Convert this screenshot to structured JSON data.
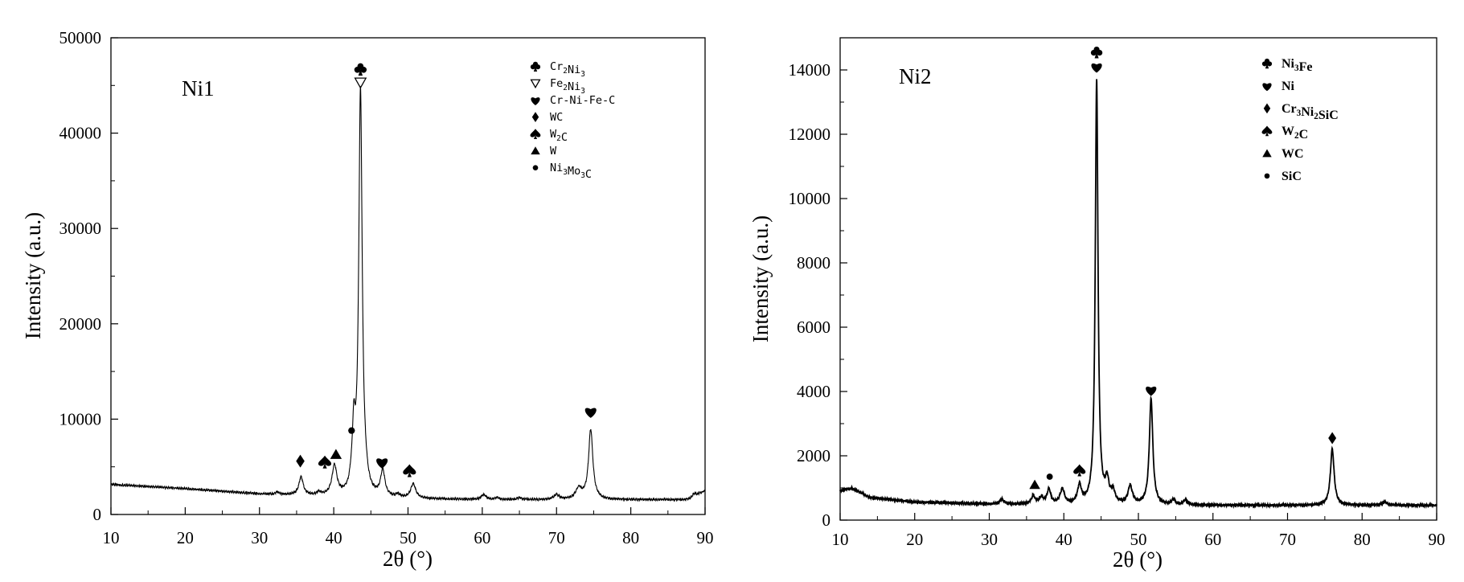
{
  "chart_data": [
    {
      "type": "line",
      "panel_label": "Ni1",
      "xlabel": "2θ (°)",
      "ylabel": "Intensity (a.u.)",
      "xlim": [
        10,
        90
      ],
      "ylim": [
        0,
        50000
      ],
      "x_ticks": [
        10,
        20,
        30,
        40,
        50,
        60,
        70,
        80,
        90
      ],
      "y_ticks": [
        0,
        10000,
        20000,
        30000,
        40000,
        50000
      ],
      "grid": false,
      "legend_position": "top-right",
      "legend": [
        {
          "symbol": "club",
          "label": "Cr2Ni3",
          "base": "Cr",
          "sub1": "2",
          "mid": "Ni",
          "sub2": "3",
          "tail": ""
        },
        {
          "symbol": "triangle-down-open",
          "label": "Fe2Ni3",
          "base": "Fe",
          "sub1": "2",
          "mid": "Ni",
          "sub2": "3",
          "tail": ""
        },
        {
          "symbol": "heart",
          "label": "Cr-Ni-Fe-C",
          "base": "Cr-Ni-Fe-C",
          "sub1": "",
          "mid": "",
          "sub2": "",
          "tail": ""
        },
        {
          "symbol": "diamond",
          "label": "WC",
          "base": "WC",
          "sub1": "",
          "mid": "",
          "sub2": "",
          "tail": ""
        },
        {
          "symbol": "spade",
          "label": "W2C",
          "base": "W",
          "sub1": "2",
          "mid": "C",
          "sub2": "",
          "tail": ""
        },
        {
          "symbol": "triangle-up",
          "label": "W",
          "base": "W",
          "sub1": "",
          "mid": "",
          "sub2": "",
          "tail": ""
        },
        {
          "symbol": "circle",
          "label": "Ni3Mo3C",
          "base": "Ni",
          "sub1": "3",
          "mid": "Mo",
          "sub2": "3",
          "tail": "C"
        }
      ],
      "baseline": [
        [
          10,
          3150
        ],
        [
          20,
          2700
        ],
        [
          30,
          2150
        ],
        [
          40,
          1850
        ],
        [
          50,
          1650
        ],
        [
          60,
          1550
        ],
        [
          70,
          1550
        ],
        [
          80,
          1550
        ],
        [
          88,
          1550
        ],
        [
          90,
          2500
        ]
      ],
      "peaks": [
        {
          "x": 32.4,
          "height": 250,
          "width": 0.25
        },
        {
          "x": 35.6,
          "height": 1900,
          "width": 0.35
        },
        {
          "x": 38.0,
          "height": 300,
          "width": 0.3
        },
        {
          "x": 40.1,
          "height": 3100,
          "width": 0.4
        },
        {
          "x": 42.3,
          "height": 400,
          "width": 0.2
        },
        {
          "x": 42.7,
          "height": 6200,
          "width": 0.25
        },
        {
          "x": 43.6,
          "height": 42400,
          "width": 0.28
        },
        {
          "x": 44.3,
          "height": 600,
          "width": 0.3
        },
        {
          "x": 46.6,
          "height": 2700,
          "width": 0.35
        },
        {
          "x": 48.6,
          "height": 300,
          "width": 0.3
        },
        {
          "x": 50.7,
          "height": 1500,
          "width": 0.4
        },
        {
          "x": 60.2,
          "height": 500,
          "width": 0.4
        },
        {
          "x": 62.0,
          "height": 200,
          "width": 0.3
        },
        {
          "x": 65.0,
          "height": 200,
          "width": 0.3
        },
        {
          "x": 70.0,
          "height": 500,
          "width": 0.4
        },
        {
          "x": 73.0,
          "height": 1100,
          "width": 0.5
        },
        {
          "x": 74.6,
          "height": 7300,
          "width": 0.35
        },
        {
          "x": 88.5,
          "height": 400,
          "width": 0.4
        }
      ],
      "annotations": [
        {
          "symbol": "club",
          "x": 43.6,
          "y": 46700
        },
        {
          "symbol": "triangle-down-open",
          "x": 43.6,
          "y": 45300
        },
        {
          "symbol": "diamond",
          "x": 35.5,
          "y": 5600
        },
        {
          "symbol": "spade",
          "x": 38.8,
          "y": 5500
        },
        {
          "symbol": "triangle-up",
          "x": 40.3,
          "y": 6300
        },
        {
          "symbol": "circle",
          "x": 42.4,
          "y": 8800
        },
        {
          "symbol": "heart",
          "x": 46.5,
          "y": 5500
        },
        {
          "symbol": "spade",
          "x": 50.2,
          "y": 4600
        },
        {
          "symbol": "heart",
          "x": 74.6,
          "y": 10800
        }
      ]
    },
    {
      "type": "line",
      "panel_label": "Ni2",
      "xlabel": "2θ (°)",
      "ylabel": "Intensity (a.u.)",
      "xlim": [
        10,
        90
      ],
      "ylim": [
        0,
        15000
      ],
      "x_ticks": [
        10,
        20,
        30,
        40,
        50,
        60,
        70,
        80,
        90
      ],
      "y_ticks": [
        0,
        2000,
        4000,
        6000,
        8000,
        10000,
        12000,
        14000
      ],
      "grid": false,
      "legend_position": "top-right",
      "legend": [
        {
          "symbol": "club",
          "label": "Ni3Fe",
          "base": "Ni",
          "sub1": "3",
          "mid": "Fe",
          "sub2": "",
          "tail": ""
        },
        {
          "symbol": "heart",
          "label": "Ni",
          "base": "Ni",
          "sub1": "",
          "mid": "",
          "sub2": "",
          "tail": ""
        },
        {
          "symbol": "diamond",
          "label": "Cr3Ni2SiC",
          "base": "Cr",
          "sub1": "3",
          "mid": "Ni",
          "sub2": "2",
          "tail": "SiC"
        },
        {
          "symbol": "spade",
          "label": "W2C",
          "base": "W",
          "sub1": "2",
          "mid": "C",
          "sub2": "",
          "tail": ""
        },
        {
          "symbol": "triangle-up",
          "label": "WC",
          "base": "WC",
          "sub1": "",
          "mid": "",
          "sub2": "",
          "tail": ""
        },
        {
          "symbol": "circle",
          "label": "SiC",
          "base": "SiC",
          "sub1": "",
          "mid": "",
          "sub2": "",
          "tail": ""
        }
      ],
      "baseline": [
        [
          10,
          900
        ],
        [
          11.5,
          1000
        ],
        [
          14,
          700
        ],
        [
          20,
          560
        ],
        [
          30,
          500
        ],
        [
          40,
          480
        ],
        [
          50,
          470
        ],
        [
          60,
          460
        ],
        [
          70,
          460
        ],
        [
          80,
          460
        ],
        [
          90,
          460
        ]
      ],
      "peaks": [
        {
          "x": 31.7,
          "height": 150,
          "width": 0.3
        },
        {
          "x": 35.9,
          "height": 250,
          "width": 0.3
        },
        {
          "x": 37.0,
          "height": 200,
          "width": 0.3
        },
        {
          "x": 38.0,
          "height": 450,
          "width": 0.3
        },
        {
          "x": 39.8,
          "height": 450,
          "width": 0.35
        },
        {
          "x": 42.1,
          "height": 550,
          "width": 0.3
        },
        {
          "x": 44.4,
          "height": 13200,
          "width": 0.22
        },
        {
          "x": 45.8,
          "height": 650,
          "width": 0.3
        },
        {
          "x": 46.6,
          "height": 350,
          "width": 0.3
        },
        {
          "x": 48.9,
          "height": 550,
          "width": 0.35
        },
        {
          "x": 51.7,
          "height": 3300,
          "width": 0.28
        },
        {
          "x": 54.7,
          "height": 150,
          "width": 0.3
        },
        {
          "x": 56.3,
          "height": 150,
          "width": 0.3
        },
        {
          "x": 76.0,
          "height": 1750,
          "width": 0.3
        },
        {
          "x": 83.0,
          "height": 100,
          "width": 0.4
        }
      ],
      "annotations": [
        {
          "symbol": "club",
          "x": 44.4,
          "y": 14550
        },
        {
          "symbol": "heart",
          "x": 44.4,
          "y": 14100
        },
        {
          "symbol": "heart",
          "x": 51.7,
          "y": 4050
        },
        {
          "symbol": "diamond",
          "x": 76.0,
          "y": 2550
        },
        {
          "symbol": "triangle-up",
          "x": 36.1,
          "y": 1100
        },
        {
          "symbol": "circle",
          "x": 38.1,
          "y": 1350
        },
        {
          "symbol": "spade",
          "x": 42.1,
          "y": 1550
        }
      ]
    }
  ]
}
